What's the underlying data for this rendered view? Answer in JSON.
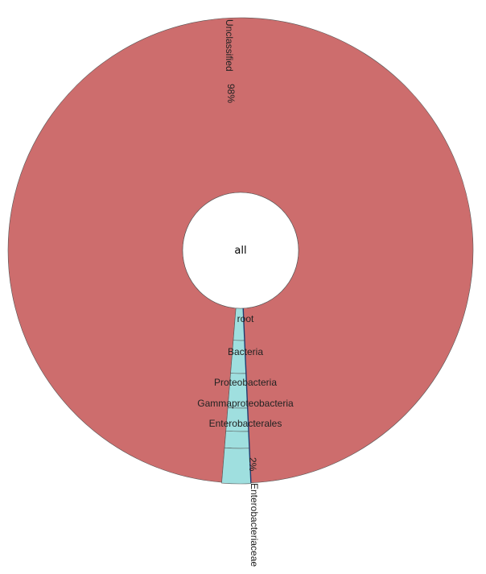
{
  "chart_data": {
    "type": "sunburst",
    "title": "",
    "root": {
      "label": "all",
      "children": [
        {
          "label": "Unclassified",
          "percent": 98,
          "percent_label": "98%",
          "color": "#cd6d6d"
        },
        {
          "label": "root",
          "percent": 2,
          "color": "#9fdfdf",
          "children": [
            {
              "label": "Bacteria",
              "children": [
                {
                  "label": "Proteobacteria",
                  "children": [
                    {
                      "label": "Gammaproteobacteria",
                      "children": [
                        {
                          "label": "Enterobacterales",
                          "children": [
                            {
                              "label": "Enterobacteriaceae",
                              "percent": 2,
                              "percent_label": "2%"
                            }
                          ]
                        }
                      ]
                    }
                  ]
                }
              ]
            }
          ]
        }
      ]
    },
    "colors": {
      "unclassified": "#cd6d6d",
      "classified": "#9fdfdf",
      "stroke": "#555555",
      "center": "#ffffff"
    }
  }
}
